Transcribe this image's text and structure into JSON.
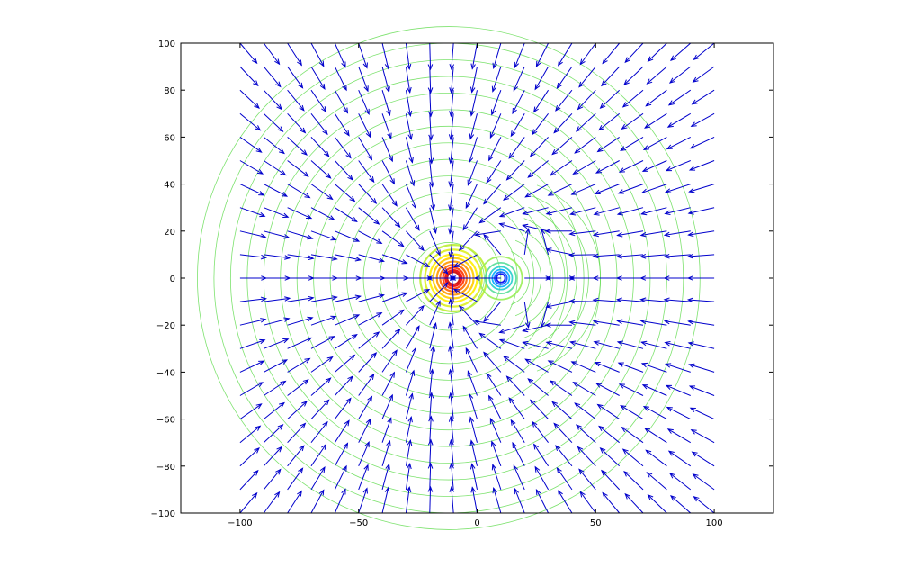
{
  "chart_data": {
    "type": "quiver-contour",
    "title": "",
    "xlabel": "",
    "ylabel": "",
    "xlim": [
      -125,
      125
    ],
    "ylim": [
      -100,
      100
    ],
    "x_ticks": [
      -100,
      -50,
      0,
      50,
      100
    ],
    "y_ticks": [
      -100,
      -80,
      -60,
      -40,
      -20,
      0,
      20,
      40,
      60,
      80,
      100
    ],
    "x_tick_labels": [
      "−100",
      "−50",
      "0",
      "50",
      "100"
    ],
    "y_tick_labels": [
      "−100",
      "−80",
      "−60",
      "−40",
      "−20",
      "0",
      "20",
      "40",
      "60",
      "80",
      "100"
    ],
    "grid": false,
    "legend": "none",
    "charges": [
      {
        "x": -10,
        "y": 0,
        "sign": -1,
        "strength": 1
      },
      {
        "x": 10,
        "y": 0,
        "sign": 1,
        "strength": 0.3
      }
    ],
    "quiver_grid": {
      "x_start": -100,
      "x_end": 100,
      "y_start": -100,
      "y_end": 100,
      "step": 10
    },
    "colors": {
      "arrow": "#0000cc",
      "contour_outer": "#66dd55",
      "contour_mid": "#ffff00",
      "contour_near_negative": "#ff0000",
      "contour_near_positive": "#0000ff",
      "axes": "#000000"
    }
  }
}
